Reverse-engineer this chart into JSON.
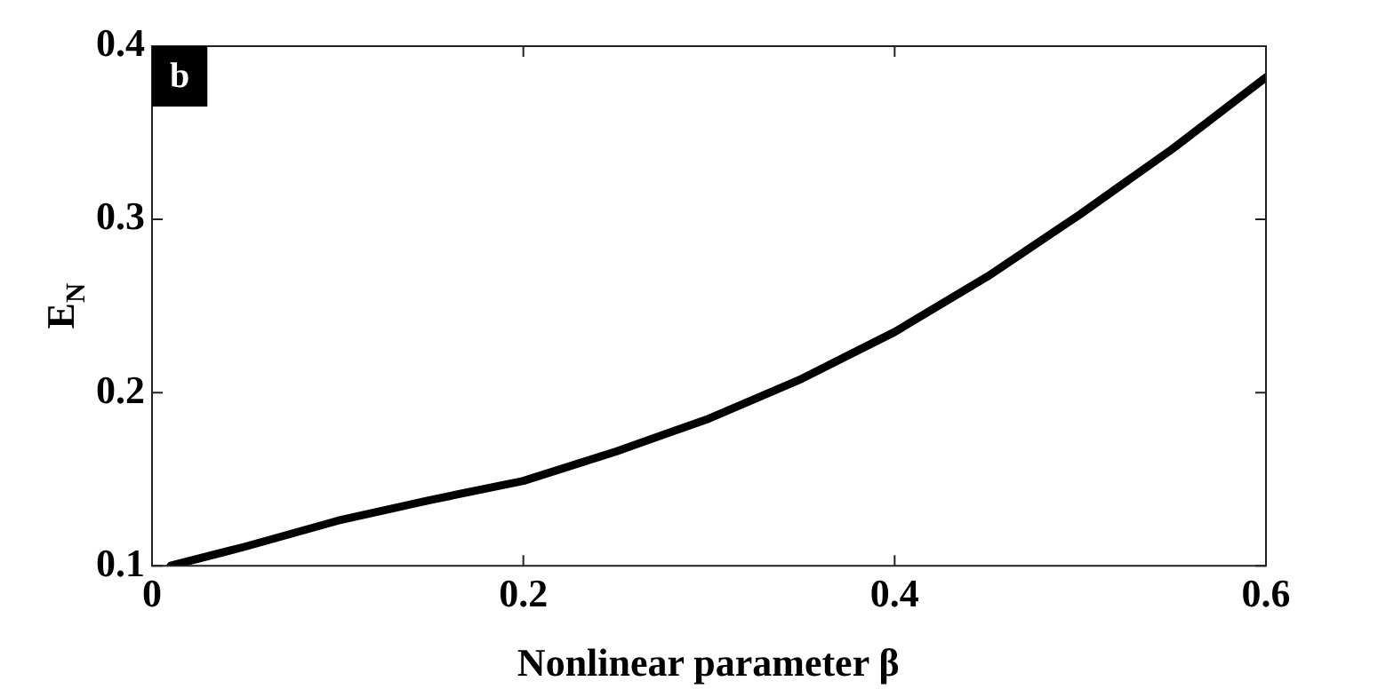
{
  "chart_data": {
    "type": "line",
    "xlabel": "Nonlinear parameter β",
    "ylabel": "E$_{N}$",
    "annotations": [
      "b"
    ],
    "series": [
      {
        "color": "#000000",
        "x": [
          0.01,
          0.05,
          0.1,
          0.15,
          0.2,
          0.25,
          0.3,
          0.35,
          0.4,
          0.45,
          0.5,
          0.55,
          0.6
        ],
        "values": [
          0.1,
          0.111,
          0.126,
          0.138,
          0.149,
          0.166,
          0.185,
          0.208,
          0.235,
          0.267,
          0.303,
          0.341,
          0.382
        ]
      }
    ],
    "xlim": [
      0,
      0.6
    ],
    "ylim": [
      0.1,
      0.4
    ],
    "xticks": [
      0,
      0.2,
      0.4,
      0.6
    ],
    "yticks": [
      0.1,
      0.2,
      0.3,
      0.4
    ],
    "grid": false,
    "legend": false,
    "marker": "none",
    "line_style": "solid"
  }
}
